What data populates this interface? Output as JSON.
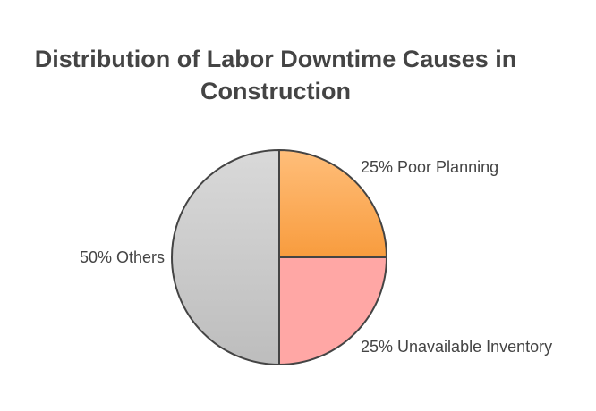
{
  "chart_data": {
    "type": "pie",
    "title": "Distribution of Labor Downtime Causes in Construction",
    "slices": [
      {
        "label": "25% Poor Planning",
        "value": 25,
        "color_top": "#FFBE7A",
        "color_bottom": "#F89C3E"
      },
      {
        "label": "25% Unavailable Inventory",
        "value": 25,
        "color_top": "#FFA7A5",
        "color_bottom": "#FFA7A5"
      },
      {
        "label": "50% Others",
        "value": 50,
        "color_top": "#D9D9D9",
        "color_bottom": "#BDBDBD"
      }
    ],
    "stroke_color": "#444444",
    "label_color": "#444444"
  }
}
